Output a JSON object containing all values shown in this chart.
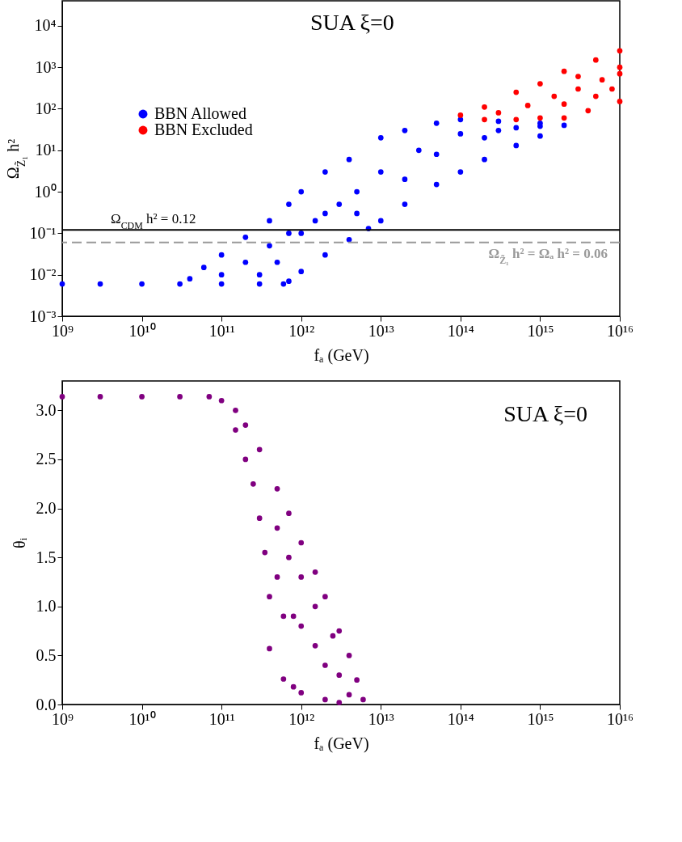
{
  "chart_data": [
    {
      "type": "scatter",
      "title": "SUA ξ=0",
      "xlabel": "fₐ (GeV)",
      "ylabel": "Ω$_{Z̃₁}$ h²",
      "log": "xy",
      "grid": false,
      "legend": "top left",
      "marker": "circle",
      "xlim": [
        1000000000.0,
        1e+16
      ],
      "ylim": [
        0.001,
        40000
      ],
      "xticks": [
        {
          "value": 1000000000.0,
          "label": "10⁹"
        },
        {
          "value": 10000000000.0,
          "label": "10¹⁰"
        },
        {
          "value": 100000000000.0,
          "label": "10¹¹"
        },
        {
          "value": 1000000000000.0,
          "label": "10¹²"
        },
        {
          "value": 10000000000000.0,
          "label": "10¹³"
        },
        {
          "value": 100000000000000.0,
          "label": "10¹⁴"
        },
        {
          "value": 1000000000000000.0,
          "label": "10¹⁵"
        },
        {
          "value": 1e+16,
          "label": "10¹⁶"
        }
      ],
      "yticks": [
        {
          "value": 0.001,
          "label": "10⁻³"
        },
        {
          "value": 0.01,
          "label": "10⁻²"
        },
        {
          "value": 0.1,
          "label": "10⁻¹"
        },
        {
          "value": 1,
          "label": "10⁰"
        },
        {
          "value": 10,
          "label": "10¹"
        },
        {
          "value": 100,
          "label": "10²"
        },
        {
          "value": 1000,
          "label": "10³"
        },
        {
          "value": 10000,
          "label": "10⁴"
        }
      ],
      "ref_lines": [
        {
          "axis": "y",
          "value": 0.12,
          "label": "Ω$_{CDM}$ h² = 0.12",
          "color": "#000000",
          "line_style": "solid"
        },
        {
          "axis": "y",
          "value": 0.06,
          "label": "Ω$_{Z̃₁}$ h² = Ωₐ h² = 0.06",
          "color": "#999999",
          "line_style": "dashed"
        }
      ],
      "series": [
        {
          "name": "BBN Allowed",
          "color": "#0000ff",
          "x": [
            1000000000.0,
            3000000000.0,
            10000000000.0,
            30000000000.0,
            100000000000.0,
            300000000000.0,
            600000000000.0,
            700000000000.0,
            1000000000000.0,
            2000000000000.0,
            4000000000000.0,
            7000000000000.0,
            10000000000000.0,
            20000000000000.0,
            50000000000000.0,
            100000000000000.0,
            200000000000000.0,
            500000000000000.0,
            1000000000000000.0,
            2000000000000000.0,
            40000000000.0,
            60000000000.0,
            100000000000.0,
            200000000000.0,
            400000000000.0,
            700000000000.0,
            1000000000000.0,
            2000000000000.0,
            4000000000000.0,
            10000000000000.0,
            20000000000000.0,
            50000000000000.0,
            100000000000000.0,
            300000000000000.0,
            1000000000000000.0,
            100000000000.0,
            200000000000.0,
            400000000000.0,
            1000000000000.0,
            2000000000000.0,
            5000000000000.0,
            10000000000000.0,
            30000000000000.0,
            100000000000000.0,
            300000000000000.0,
            1000000000000000.0,
            300000000000.0,
            500000000000.0,
            700000000000.0,
            1500000000000.0,
            3000000000000.0,
            5000000000000.0,
            20000000000000.0,
            50000000000000.0,
            200000000000000.0,
            500000000000000.0
          ],
          "values": [
            0.006,
            0.006,
            0.006,
            0.006,
            0.006,
            0.006,
            0.006,
            0.007,
            0.012,
            0.03,
            0.07,
            0.13,
            0.2,
            0.5,
            1.5,
            3,
            6,
            13,
            22,
            40,
            0.008,
            0.015,
            0.03,
            0.08,
            0.2,
            0.5,
            1,
            3,
            6,
            20,
            30,
            45,
            55,
            50,
            45,
            0.01,
            0.02,
            0.05,
            0.1,
            0.3,
            1,
            3,
            10,
            25,
            30,
            38,
            0.01,
            0.02,
            0.1,
            0.2,
            0.5,
            0.3,
            2,
            8,
            20,
            35
          ]
        },
        {
          "name": "BBN Excluded",
          "color": "#ff0000",
          "x": [
            200000000000000.0,
            500000000000000.0,
            1000000000000000.0,
            2000000000000000.0,
            4000000000000000.0,
            1e+16,
            100000000000000.0,
            200000000000000.0,
            500000000000000.0,
            1000000000000000.0,
            2000000000000000.0,
            5000000000000000.0,
            1e+16,
            300000000000000.0,
            700000000000000.0,
            1500000000000000.0,
            3000000000000000.0,
            6000000000000000.0,
            1e+16,
            8000000000000000.0,
            5000000000000000.0,
            2000000000000000.0,
            1e+16,
            3000000000000000.0
          ],
          "values": [
            55,
            55,
            60,
            60,
            90,
            150,
            70,
            110,
            250,
            400,
            800,
            1500,
            2500,
            80,
            120,
            200,
            300,
            500,
            700,
            300,
            200,
            130,
            1000,
            600
          ]
        }
      ]
    },
    {
      "type": "scatter",
      "title": "SUA ξ=0",
      "xlabel": "fₐ (GeV)",
      "ylabel": "θᵢ",
      "log": "x",
      "grid": false,
      "legend": false,
      "marker": "circle",
      "xlim": [
        1000000000.0,
        1e+16
      ],
      "ylim": [
        0,
        3.3
      ],
      "xticks": [
        {
          "value": 1000000000.0,
          "label": "10⁹"
        },
        {
          "value": 10000000000.0,
          "label": "10¹⁰"
        },
        {
          "value": 100000000000.0,
          "label": "10¹¹"
        },
        {
          "value": 1000000000000.0,
          "label": "10¹²"
        },
        {
          "value": 10000000000000.0,
          "label": "10¹³"
        },
        {
          "value": 100000000000000.0,
          "label": "10¹⁴"
        },
        {
          "value": 1000000000000000.0,
          "label": "10¹⁵"
        },
        {
          "value": 1e+16,
          "label": "10¹⁶"
        }
      ],
      "yticks": [
        {
          "value": 0,
          "label": "0.0"
        },
        0.5,
        {
          "value": 1,
          "label": "1.0"
        },
        1.5,
        {
          "value": 2,
          "label": "2.0"
        },
        2.5,
        {
          "value": 3,
          "label": "3.0"
        }
      ],
      "series": [
        {
          "color": "#800080",
          "x": [
            1000000000.0,
            3000000000.0,
            10000000000.0,
            30000000000.0,
            70000000000.0,
            100000000000.0,
            150000000000.0,
            200000000000.0,
            300000000000.0,
            500000000000.0,
            700000000000.0,
            1000000000000.0,
            1500000000000.0,
            2000000000000.0,
            3000000000000.0,
            4000000000000.0,
            5000000000000.0,
            6000000000000.0,
            150000000000.0,
            200000000000.0,
            250000000000.0,
            300000000000.0,
            350000000000.0,
            400000000000.0,
            400000000000.0,
            600000000000.0,
            800000000000.0,
            1000000000000.0,
            2000000000000.0,
            3000000000000.0,
            500000000000.0,
            600000000000.0,
            800000000000.0,
            1000000000000.0,
            1500000000000.0,
            2000000000000.0,
            3000000000000.0,
            4000000000000.0,
            500000000000.0,
            700000000000.0,
            1000000000000.0,
            1500000000000.0,
            2500000000000.0
          ],
          "values": [
            3.14,
            3.14,
            3.14,
            3.14,
            3.14,
            3.1,
            3.0,
            2.85,
            2.6,
            2.2,
            1.95,
            1.65,
            1.35,
            1.1,
            0.75,
            0.5,
            0.25,
            0.05,
            2.8,
            2.5,
            2.25,
            1.9,
            1.55,
            1.1,
            0.57,
            0.26,
            0.18,
            0.12,
            0.05,
            0.02,
            1.3,
            0.9,
            0.9,
            0.8,
            0.6,
            0.4,
            0.3,
            0.1,
            1.8,
            1.5,
            1.3,
            1.0,
            0.7
          ]
        }
      ]
    }
  ]
}
